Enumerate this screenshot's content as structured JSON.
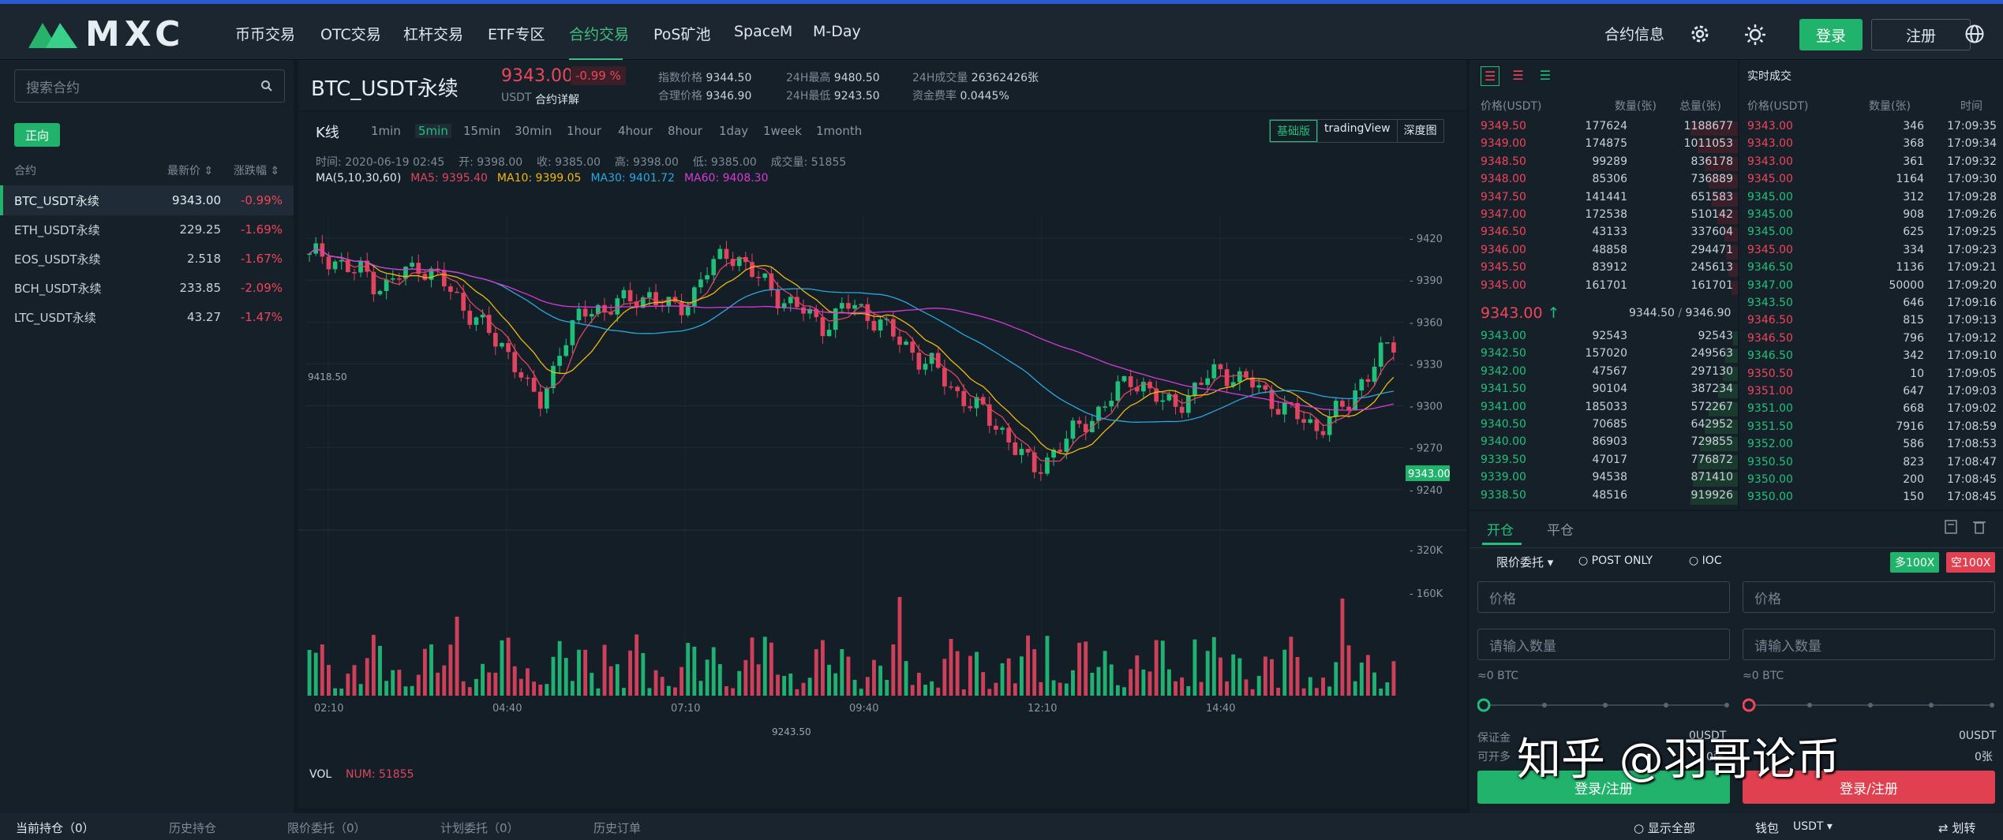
{
  "nav": {
    "logo": "MXC",
    "items": [
      "币币交易",
      "OTC交易",
      "杠杆交易",
      "ETF专区",
      "合约交易",
      "PoS矿池",
      "SpaceM",
      "M-Day"
    ],
    "active": 4,
    "contract_info": "合约信息",
    "login": "登录",
    "register": "注册"
  },
  "sidebar": {
    "search_placeholder": "搜索合约",
    "mode_button": "正向",
    "col_contract": "合约",
    "col_price": "最新价",
    "col_change": "涨跌幅",
    "rows": [
      {
        "name": "BTC_USDT永续",
        "price": "9343.00",
        "change": "-0.99%"
      },
      {
        "name": "ETH_USDT永续",
        "price": "229.25",
        "change": "-1.69%"
      },
      {
        "name": "EOS_USDT永续",
        "price": "2.518",
        "change": "-1.67%"
      },
      {
        "name": "BCH_USDT永续",
        "price": "233.85",
        "change": "-2.09%"
      },
      {
        "name": "LTC_USDT永续",
        "price": "43.27",
        "change": "-1.47%"
      }
    ]
  },
  "header": {
    "symbol": "BTC_USDT永续",
    "price": "9343.00",
    "change": "-0.99 %",
    "quote": "USDT",
    "detail_link": "合约详解",
    "index_label": "指数价格",
    "index_value": "9344.50",
    "fair_label": "合理价格",
    "fair_value": "9346.90",
    "high_label": "24H最高",
    "high_value": "9480.50",
    "low_label": "24H最低",
    "low_value": "9243.50",
    "vol_label": "24H成交量",
    "vol_value": "26362426张",
    "funding_label": "资金费率",
    "funding_value": "0.0445%"
  },
  "chart_toolbar": {
    "title": "K线",
    "intervals": [
      "1min",
      "5min",
      "15min",
      "30min",
      "1hour",
      "4hour",
      "8hour",
      "1day",
      "1week",
      "1month"
    ],
    "active_interval": 1,
    "views": [
      "基础版",
      "tradingView",
      "深度图"
    ],
    "active_view": 0
  },
  "chart_legend": {
    "ohlc": "时间: 2020-06-19 02:45    开: 9398.00    收: 9385.00    高: 9398.00    低: 9385.00    成交量: 51855",
    "ma_params": "MA(5,10,30,60)",
    "ma5": "MA5: 9395.40",
    "ma10": "MA10: 9399.05",
    "ma30": "MA30: 9401.72",
    "ma60": "MA60: 9408.30",
    "vol_label": "VOL",
    "vol_num": "NUM: 51855",
    "high_marker": "9418.50",
    "low_marker": "9243.50",
    "last_price_tag": "9343.00"
  },
  "chart_data": {
    "type": "candlestick",
    "y_ticks": [
      9420,
      9390,
      9360,
      9330,
      9300,
      9270,
      9240
    ],
    "ylim": [
      9228,
      9437
    ],
    "vol_ticks": [
      "320K",
      "160K"
    ],
    "x_ticks": [
      "02:10",
      "04:40",
      "07:10",
      "09:40",
      "12:10",
      "14:40"
    ],
    "ma_colors": {
      "ma5": "#e0445f",
      "ma10": "#f0b90b",
      "ma30": "#29a7df",
      "ma60": "#d63bd6"
    },
    "close_path": [
      9405,
      9410,
      9406,
      9400,
      9395,
      9397,
      9388,
      9385,
      9392,
      9396,
      9402,
      9395,
      9390,
      9380,
      9372,
      9365,
      9355,
      9345,
      9340,
      9330,
      9310,
      9300,
      9320,
      9345,
      9355,
      9365,
      9372,
      9368,
      9375,
      9372,
      9378,
      9380,
      9374,
      9368,
      9372,
      9380,
      9395,
      9400,
      9410,
      9408,
      9398,
      9390,
      9385,
      9378,
      9372,
      9368,
      9362,
      9358,
      9364,
      9372,
      9370,
      9366,
      9360,
      9352,
      9345,
      9340,
      9332,
      9328,
      9318,
      9310,
      9305,
      9298,
      9290,
      9285,
      9275,
      9265,
      9252,
      9260,
      9268,
      9275,
      9282,
      9290,
      9296,
      9304,
      9312,
      9320,
      9316,
      9308,
      9300,
      9302,
      9306,
      9312,
      9320,
      9326,
      9323,
      9318,
      9316,
      9310,
      9304,
      9298,
      9293,
      9288,
      9285,
      9290,
      9296,
      9302,
      9318,
      9328,
      9338,
      9343
    ]
  },
  "orderbook": {
    "col_price": "价格(USDT)",
    "col_qty": "数量(张)",
    "col_total": "总量(张)",
    "asks": [
      [
        "9349.50",
        "177624",
        "1188677"
      ],
      [
        "9349.00",
        "174875",
        "1011053"
      ],
      [
        "9348.50",
        "99289",
        "836178"
      ],
      [
        "9348.00",
        "85306",
        "736889"
      ],
      [
        "9347.50",
        "141441",
        "651583"
      ],
      [
        "9347.00",
        "172538",
        "510142"
      ],
      [
        "9346.50",
        "43133",
        "337604"
      ],
      [
        "9346.00",
        "48858",
        "294471"
      ],
      [
        "9345.50",
        "83912",
        "245613"
      ],
      [
        "9345.00",
        "161701",
        "161701"
      ]
    ],
    "last_price": "9343.00",
    "last_arrow": "↑",
    "index_price": "9344.50",
    "sep": "/",
    "fair_price": "9346.90",
    "bids": [
      [
        "9343.00",
        "92543",
        "92543"
      ],
      [
        "9342.50",
        "157020",
        "249563"
      ],
      [
        "9342.00",
        "47567",
        "297130"
      ],
      [
        "9341.50",
        "90104",
        "387234"
      ],
      [
        "9341.00",
        "185033",
        "572267"
      ],
      [
        "9340.50",
        "70685",
        "642952"
      ],
      [
        "9340.00",
        "86903",
        "729855"
      ],
      [
        "9339.50",
        "47017",
        "776872"
      ],
      [
        "9339.00",
        "94538",
        "871410"
      ],
      [
        "9338.50",
        "48516",
        "919926"
      ]
    ]
  },
  "trades": {
    "title": "实时成交",
    "col_price": "价格(USDT)",
    "col_qty": "数量(张)",
    "col_time": "时间",
    "rows": [
      [
        "9343.00",
        "346",
        "17:09:35",
        "red"
      ],
      [
        "9343.00",
        "368",
        "17:09:34",
        "red"
      ],
      [
        "9343.00",
        "361",
        "17:09:32",
        "red"
      ],
      [
        "9345.00",
        "1164",
        "17:09:30",
        "red"
      ],
      [
        "9345.00",
        "312",
        "17:09:28",
        "green"
      ],
      [
        "9345.00",
        "908",
        "17:09:26",
        "green"
      ],
      [
        "9345.00",
        "625",
        "17:09:25",
        "green"
      ],
      [
        "9345.00",
        "334",
        "17:09:23",
        "red"
      ],
      [
        "9346.50",
        "1136",
        "17:09:21",
        "green"
      ],
      [
        "9347.00",
        "50000",
        "17:09:20",
        "green"
      ],
      [
        "9343.50",
        "646",
        "17:09:16",
        "green"
      ],
      [
        "9346.50",
        "815",
        "17:09:13",
        "red"
      ],
      [
        "9346.50",
        "796",
        "17:09:12",
        "red"
      ],
      [
        "9346.50",
        "342",
        "17:09:10",
        "green"
      ],
      [
        "9350.50",
        "10",
        "17:09:05",
        "red"
      ],
      [
        "9351.00",
        "647",
        "17:09:03",
        "red"
      ],
      [
        "9351.00",
        "668",
        "17:09:02",
        "green"
      ],
      [
        "9351.50",
        "7916",
        "17:08:59",
        "green"
      ],
      [
        "9352.00",
        "586",
        "17:08:53",
        "green"
      ],
      [
        "9350.50",
        "823",
        "17:08:47",
        "green"
      ],
      [
        "9350.00",
        "200",
        "17:08:45",
        "green"
      ],
      [
        "9350.00",
        "150",
        "17:08:45",
        "green"
      ]
    ]
  },
  "order": {
    "tab_open": "开仓",
    "tab_close": "平仓",
    "order_type": "限价委托",
    "post_only": "POST ONLY",
    "ioc": "IOC",
    "long_leverage": "多100X",
    "short_leverage": "空100X",
    "price_placeholder": "价格",
    "qty_placeholder": "请输入数量",
    "approx": "≈0 BTC",
    "margin_label": "保证金",
    "margin_value": "0USDT",
    "open_label": "可开多",
    "open_value": "0张",
    "login_register": "登录/注册",
    "watermark": "知乎 @羽哥论币"
  },
  "bottom": {
    "tabs": [
      "当前持仓（0）",
      "历史持仓",
      "限价委托（0）",
      "计划委托（0）",
      "历史订单"
    ],
    "show_all": "显示全部",
    "wallet": "钱包",
    "currency": "USDT",
    "transfer": "划转"
  }
}
